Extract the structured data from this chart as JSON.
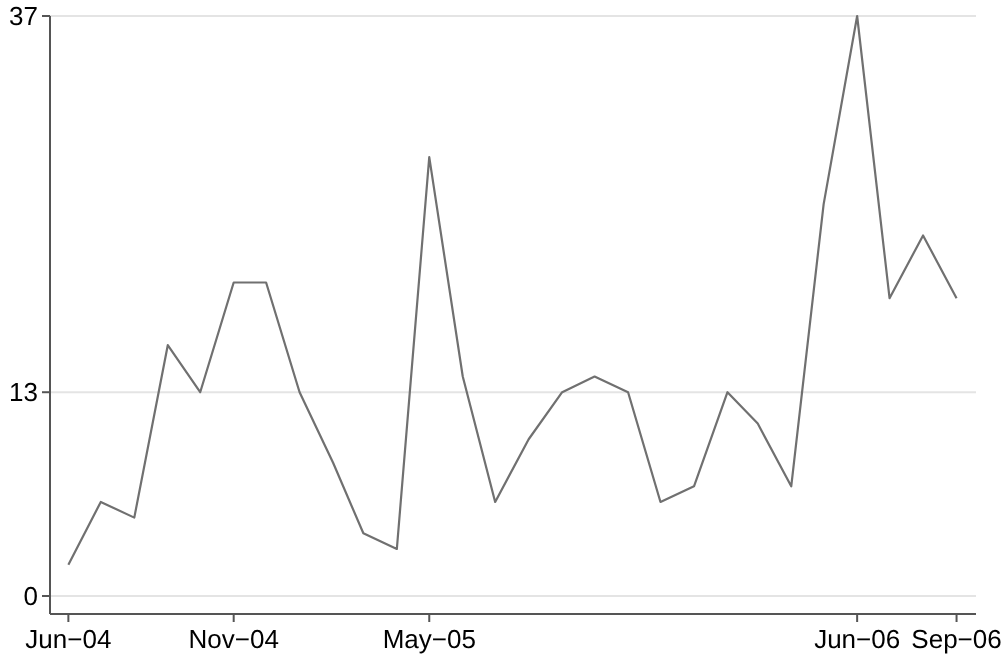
{
  "chart_data": {
    "type": "line",
    "x": [
      "2004-06",
      "2004-07",
      "2004-08",
      "2004-09",
      "2004-10",
      "2004-11",
      "2004-12",
      "2005-01",
      "2005-02",
      "2005-03",
      "2005-04",
      "2005-05",
      "2005-06",
      "2005-07",
      "2005-08",
      "2005-09",
      "2005-10",
      "2005-11",
      "2005-12",
      "2006-01",
      "2006-02",
      "2006-03",
      "2006-04",
      "2006-05",
      "2006-06",
      "2006-07",
      "2006-08",
      "2006-09"
    ],
    "series": [
      {
        "color": "#707070",
        "values": [
          2,
          6,
          5,
          16,
          13,
          20,
          20,
          13,
          8.5,
          4,
          3,
          28,
          14,
          6,
          10,
          13,
          14,
          13,
          6,
          7,
          13,
          11,
          7,
          25,
          37,
          19,
          23,
          19
        ]
      }
    ],
    "xlim": [
      "2004-05-15",
      "2006-09-19"
    ],
    "xticks": [
      {
        "value": "2004-06",
        "label": "Jun−04"
      },
      {
        "value": "2004-11",
        "label": "Nov−04"
      },
      {
        "value": "2005-05",
        "label": "May−05"
      },
      {
        "value": "2006-06",
        "label": "Jun−06"
      },
      {
        "value": "2006-09",
        "label": "Sep−06"
      }
    ],
    "ylim": [
      0,
      37
    ],
    "yticks": [
      0,
      13,
      37
    ],
    "grid": "y",
    "marker": "none",
    "line_style": "solid"
  }
}
